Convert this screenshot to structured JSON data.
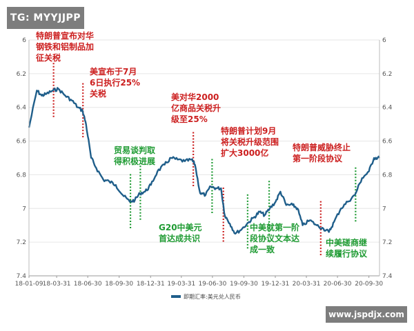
{
  "watermark_tg": "TG: MYYJJPP",
  "watermark_site": "www.jspdjx.com",
  "colors": {
    "line": "#1f5e8a",
    "red_annotation": "#cc1f1f",
    "green_annotation": "#1f9b33",
    "grid": "#e6e6e6",
    "axis_text": "#555555"
  },
  "chart_data": {
    "type": "line",
    "title": "",
    "xlabel": "",
    "ylabel": "",
    "ylim": [
      6,
      7.4
    ],
    "y_inverted": true,
    "y_ticks": [
      "6",
      "6.2",
      "6.4",
      "6.6",
      "6.8",
      "7",
      "7.2",
      "7.4"
    ],
    "x_ticks": [
      "18-01-09",
      "18-03-31",
      "18-06-30",
      "18-09-30",
      "18-12-31",
      "19-03-31",
      "19-06-30",
      "19-09-30",
      "19-12-31",
      "20-03-31",
      "20-06-30",
      "20-09-30"
    ],
    "x_tick_dates": [
      "2018-01-09",
      "2018-03-31",
      "2018-06-30",
      "2018-09-30",
      "2018-12-31",
      "2019-03-31",
      "2019-06-30",
      "2019-09-30",
      "2019-12-31",
      "2020-03-31",
      "2020-06-30",
      "2020-09-30"
    ],
    "x_range": [
      "2018-01-09",
      "2020-10-31"
    ],
    "legend": "即期汇率:美元兑人民币",
    "legend_position": "bottom",
    "series": [
      {
        "name": "即期汇率:美元兑人民币",
        "x": [
          "2018-01-09",
          "2018-02-01",
          "2018-02-15",
          "2018-03-01",
          "2018-03-20",
          "2018-04-05",
          "2018-04-25",
          "2018-05-15",
          "2018-06-01",
          "2018-06-15",
          "2018-06-25",
          "2018-07-10",
          "2018-07-25",
          "2018-08-15",
          "2018-09-01",
          "2018-09-20",
          "2018-10-10",
          "2018-10-31",
          "2018-11-15",
          "2018-11-30",
          "2018-12-15",
          "2019-01-01",
          "2019-01-20",
          "2019-02-10",
          "2019-03-01",
          "2019-03-20",
          "2019-04-10",
          "2019-04-30",
          "2019-05-10",
          "2019-05-25",
          "2019-06-10",
          "2019-06-25",
          "2019-07-10",
          "2019-07-25",
          "2019-08-05",
          "2019-08-20",
          "2019-09-05",
          "2019-09-25",
          "2019-10-15",
          "2019-10-31",
          "2019-11-15",
          "2019-11-30",
          "2019-12-15",
          "2020-01-01",
          "2020-01-15",
          "2020-02-01",
          "2020-02-20",
          "2020-03-05",
          "2020-03-20",
          "2020-04-10",
          "2020-04-30",
          "2020-05-20",
          "2020-06-05",
          "2020-06-20",
          "2020-07-10",
          "2020-07-30",
          "2020-08-20",
          "2020-09-10",
          "2020-09-30",
          "2020-10-15",
          "2020-10-31"
        ],
        "values": [
          6.52,
          6.3,
          6.33,
          6.32,
          6.3,
          6.29,
          6.33,
          6.36,
          6.4,
          6.42,
          6.5,
          6.7,
          6.76,
          6.83,
          6.84,
          6.86,
          6.92,
          6.96,
          6.95,
          6.91,
          6.9,
          6.86,
          6.78,
          6.74,
          6.7,
          6.71,
          6.72,
          6.71,
          6.74,
          6.91,
          6.92,
          6.87,
          6.88,
          6.88,
          7.04,
          7.09,
          7.15,
          7.12,
          7.08,
          7.05,
          7.02,
          7.04,
          7.0,
          6.96,
          6.9,
          6.98,
          6.98,
          7.0,
          7.1,
          7.07,
          7.1,
          7.12,
          7.14,
          7.08,
          7.0,
          6.96,
          6.92,
          6.82,
          6.78,
          6.7,
          6.7
        ]
      }
    ],
    "annotations": [
      {
        "date": "2018-03-22",
        "color": "red",
        "text": "特朗普宣布对华钢铁和铝制品加征关税",
        "lines": [
          "特朗普宣布对华",
          "钢铁和铝制品加",
          "征关税"
        ]
      },
      {
        "date": "2018-06-16",
        "color": "red",
        "text": "美宣布于7月6日执行25%关税",
        "lines": [
          "美宣布于7月",
          "6日执行25%",
          "关税"
        ]
      },
      {
        "date": "2018-11-02",
        "color": "green",
        "text": "贸易谈判取得积极进展",
        "lines": [
          "贸易谈判取",
          "得积极进展"
        ]
      },
      {
        "date": "2018-12-01",
        "color": "green",
        "text": "G20中美元首达成共识",
        "lines": [
          "G20中美元",
          "首达成共识"
        ]
      },
      {
        "date": "2019-05-05",
        "color": "red",
        "text": "美对华2000亿商品关税升级至25%",
        "lines": [
          "美对华2000",
          "亿商品关税升",
          "级至25%"
        ]
      },
      {
        "date": "2019-06-29",
        "color": "green",
        "text": "",
        "lines": []
      },
      {
        "date": "2019-08-01",
        "color": "red",
        "text": "特朗普计划9月将关税升级范围扩大3000亿",
        "lines": [
          "特朗普计划9月",
          "将关税升级范围",
          "扩大3000亿"
        ]
      },
      {
        "date": "2019-10-11",
        "color": "green",
        "text": "",
        "lines": []
      },
      {
        "date": "2019-12-13",
        "color": "green",
        "text": "中美就第一阶段协议文本达成一致",
        "lines": [
          "中美就第一阶",
          "段协议文本达",
          "成一致"
        ]
      },
      {
        "date": "2020-05-12",
        "color": "red",
        "text": "特朗普威胁终止第一阶段协议",
        "lines": [
          "特朗普威胁终止",
          "第一阶段协议"
        ]
      },
      {
        "date": "2020-08-22",
        "color": "green",
        "text": "中美磋商继续履行协议",
        "lines": [
          "中美磋商继",
          "续履行协议"
        ]
      }
    ]
  }
}
